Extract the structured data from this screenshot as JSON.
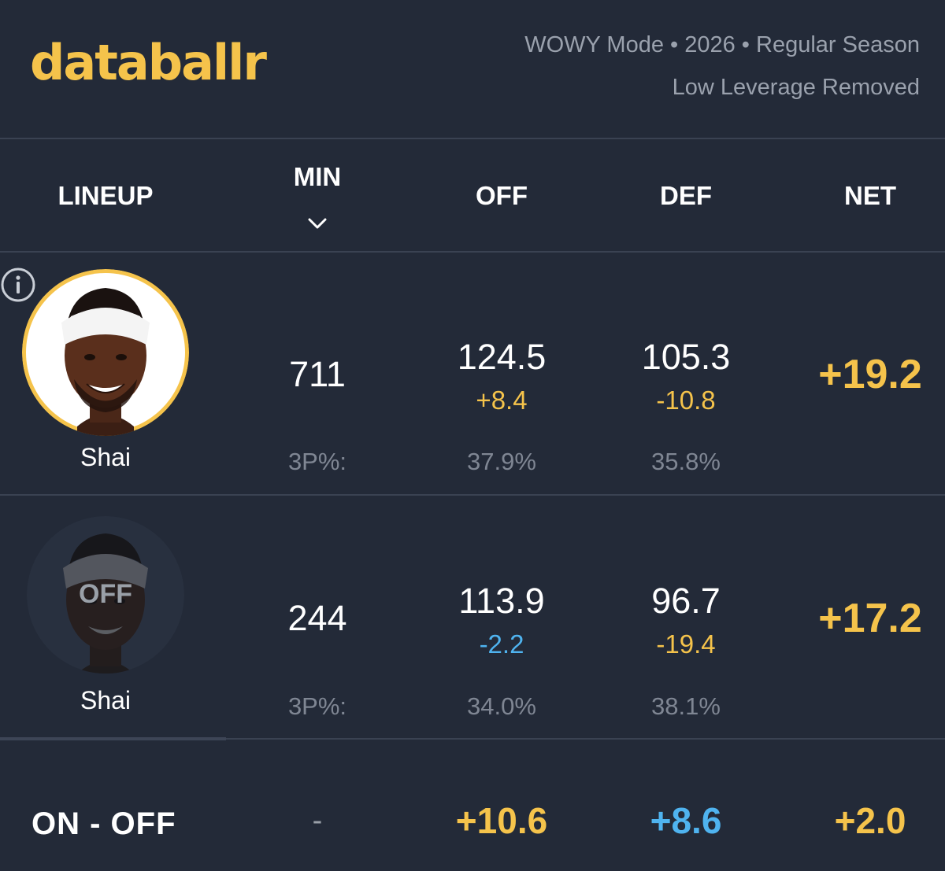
{
  "brand": {
    "logo": "databallr"
  },
  "meta": {
    "mode_line": "WOWY Mode • 2026 • Regular Season",
    "filter_line": "Low Leverage Removed"
  },
  "columns": {
    "lineup": "LINEUP",
    "min": "MIN",
    "off": "OFF",
    "def": "DEF",
    "net": "NET"
  },
  "rows": [
    {
      "player": "Shai",
      "state": "on",
      "min": "711",
      "three_label": "3P%:",
      "off": "124.5",
      "off_delta": "+8.4",
      "off_3p": "37.9%",
      "def": "105.3",
      "def_delta": "-10.8",
      "def_3p": "35.8%",
      "net": "+19.2"
    },
    {
      "player": "Shai",
      "state": "off",
      "badge": "OFF",
      "min": "244",
      "three_label": "3P%:",
      "off": "113.9",
      "off_delta": "-2.2",
      "off_3p": "34.0%",
      "def": "96.7",
      "def_delta": "-19.4",
      "def_3p": "38.1%",
      "net": "+17.2"
    }
  ],
  "summary": {
    "label": "ON - OFF",
    "min": "-",
    "off": "+10.6",
    "def": "+8.6",
    "net": "+2.0"
  },
  "colors": {
    "accent": "#f5c34b",
    "positive_blue": "#4fb3ef",
    "background": "#232a38"
  },
  "icons": [
    "info-icon",
    "chevron-down-icon"
  ]
}
